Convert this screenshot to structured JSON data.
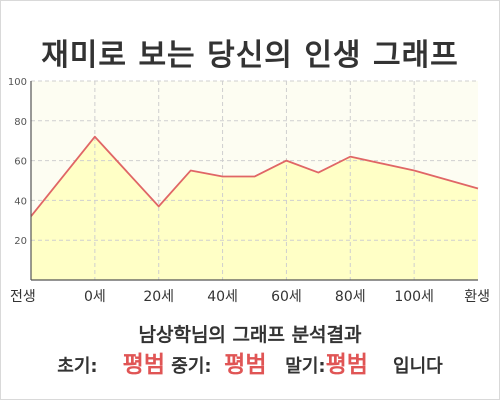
{
  "title": "재미로 보는 당신의 인생 그래프",
  "chart_data": {
    "type": "area",
    "x_labels": [
      "전생",
      "0세",
      "20세",
      "40세",
      "60세",
      "80세",
      "100세",
      "환생"
    ],
    "x": [
      -20,
      0,
      20,
      40,
      60,
      80,
      100,
      120
    ],
    "points": [
      {
        "x": -20,
        "y": 32
      },
      {
        "x": 0,
        "y": 72
      },
      {
        "x": 20,
        "y": 37
      },
      {
        "x": 30,
        "y": 55
      },
      {
        "x": 40,
        "y": 52
      },
      {
        "x": 50,
        "y": 52
      },
      {
        "x": 60,
        "y": 60
      },
      {
        "x": 70,
        "y": 54
      },
      {
        "x": 80,
        "y": 62
      },
      {
        "x": 100,
        "y": 55
      },
      {
        "x": 120,
        "y": 46
      }
    ],
    "y_ticks": [
      20,
      40,
      60,
      80,
      100
    ],
    "ylim": [
      0,
      100
    ],
    "xlim": [
      -20,
      120
    ],
    "grid": true,
    "colors": {
      "fill": "#ffffc6",
      "line": "#e06666",
      "grid": "#cfcfcf",
      "axis": "#555555"
    }
  },
  "summary": {
    "title": "남상학님의 그래프 분석결과",
    "early_label": "초기:",
    "early_value": "평범",
    "middle_label": "중기:",
    "middle_value": "평범",
    "late_label": "말기:",
    "late_value": "평범",
    "suffix": "입니다",
    "value_color": "#e05555"
  }
}
